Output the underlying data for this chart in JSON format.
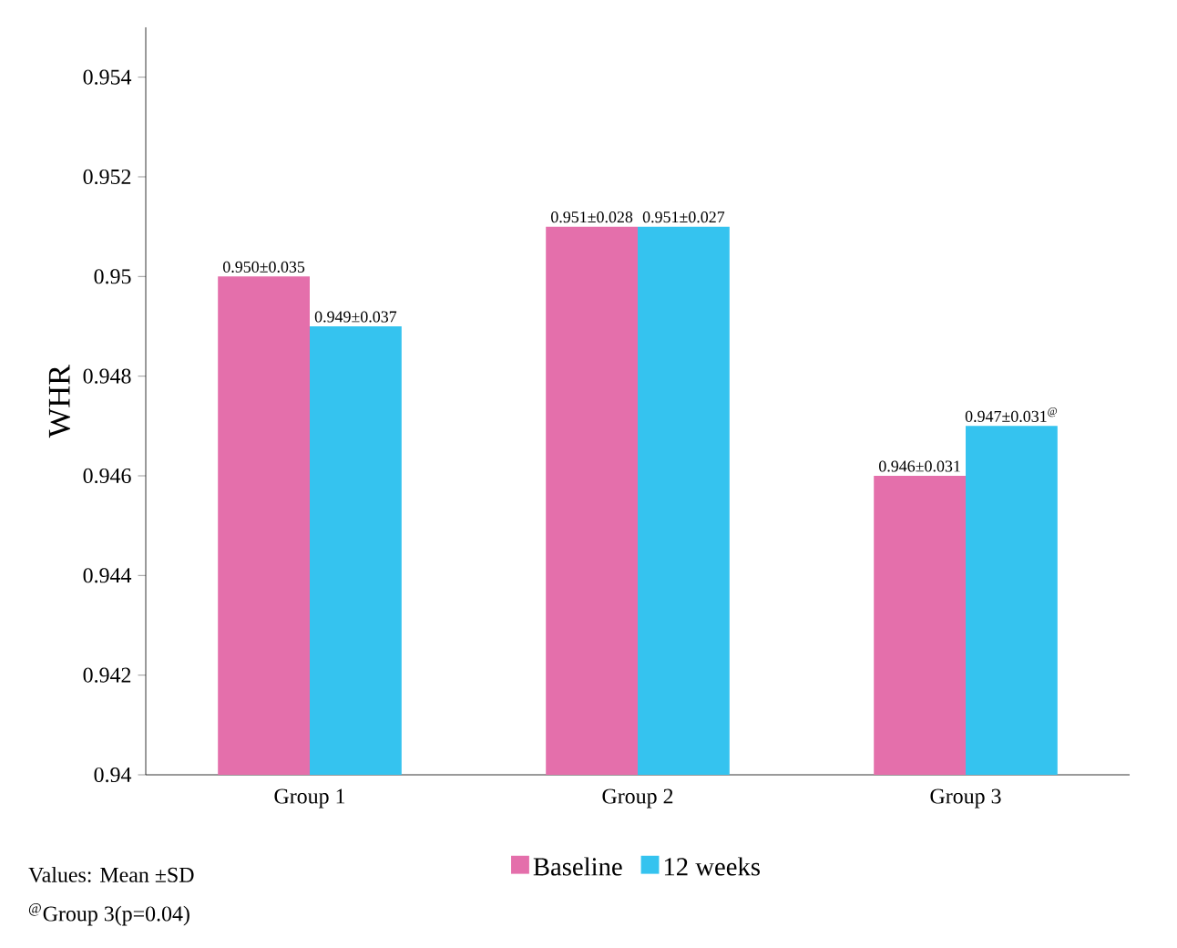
{
  "chart_data": {
    "type": "bar",
    "ylabel": "WHR",
    "categories": [
      "Group 1",
      "Group 2",
      "Group 3"
    ],
    "series": [
      {
        "name": "Baseline",
        "color": "#e46fab",
        "values": [
          0.95,
          0.951,
          0.946
        ],
        "value_labels": [
          "0.950±0.035",
          "0.951±0.028",
          "0.946±0.031"
        ]
      },
      {
        "name": "12 weeks",
        "color": "#35c3ef",
        "values": [
          0.949,
          0.951,
          0.947
        ],
        "value_labels": [
          "0.949±0.037",
          "0.951±0.027",
          "0.947±0.031$^{@}$"
        ]
      }
    ],
    "ylim": [
      0.94,
      0.955
    ],
    "yticks": [
      0.94,
      0.942,
      0.944,
      0.946,
      0.948,
      0.95,
      0.952,
      0.954
    ],
    "legend": "bottom",
    "annotations": [
      "Values: Mean ±SD",
      "$^{@}$Group 3(p=0.04)"
    ]
  }
}
